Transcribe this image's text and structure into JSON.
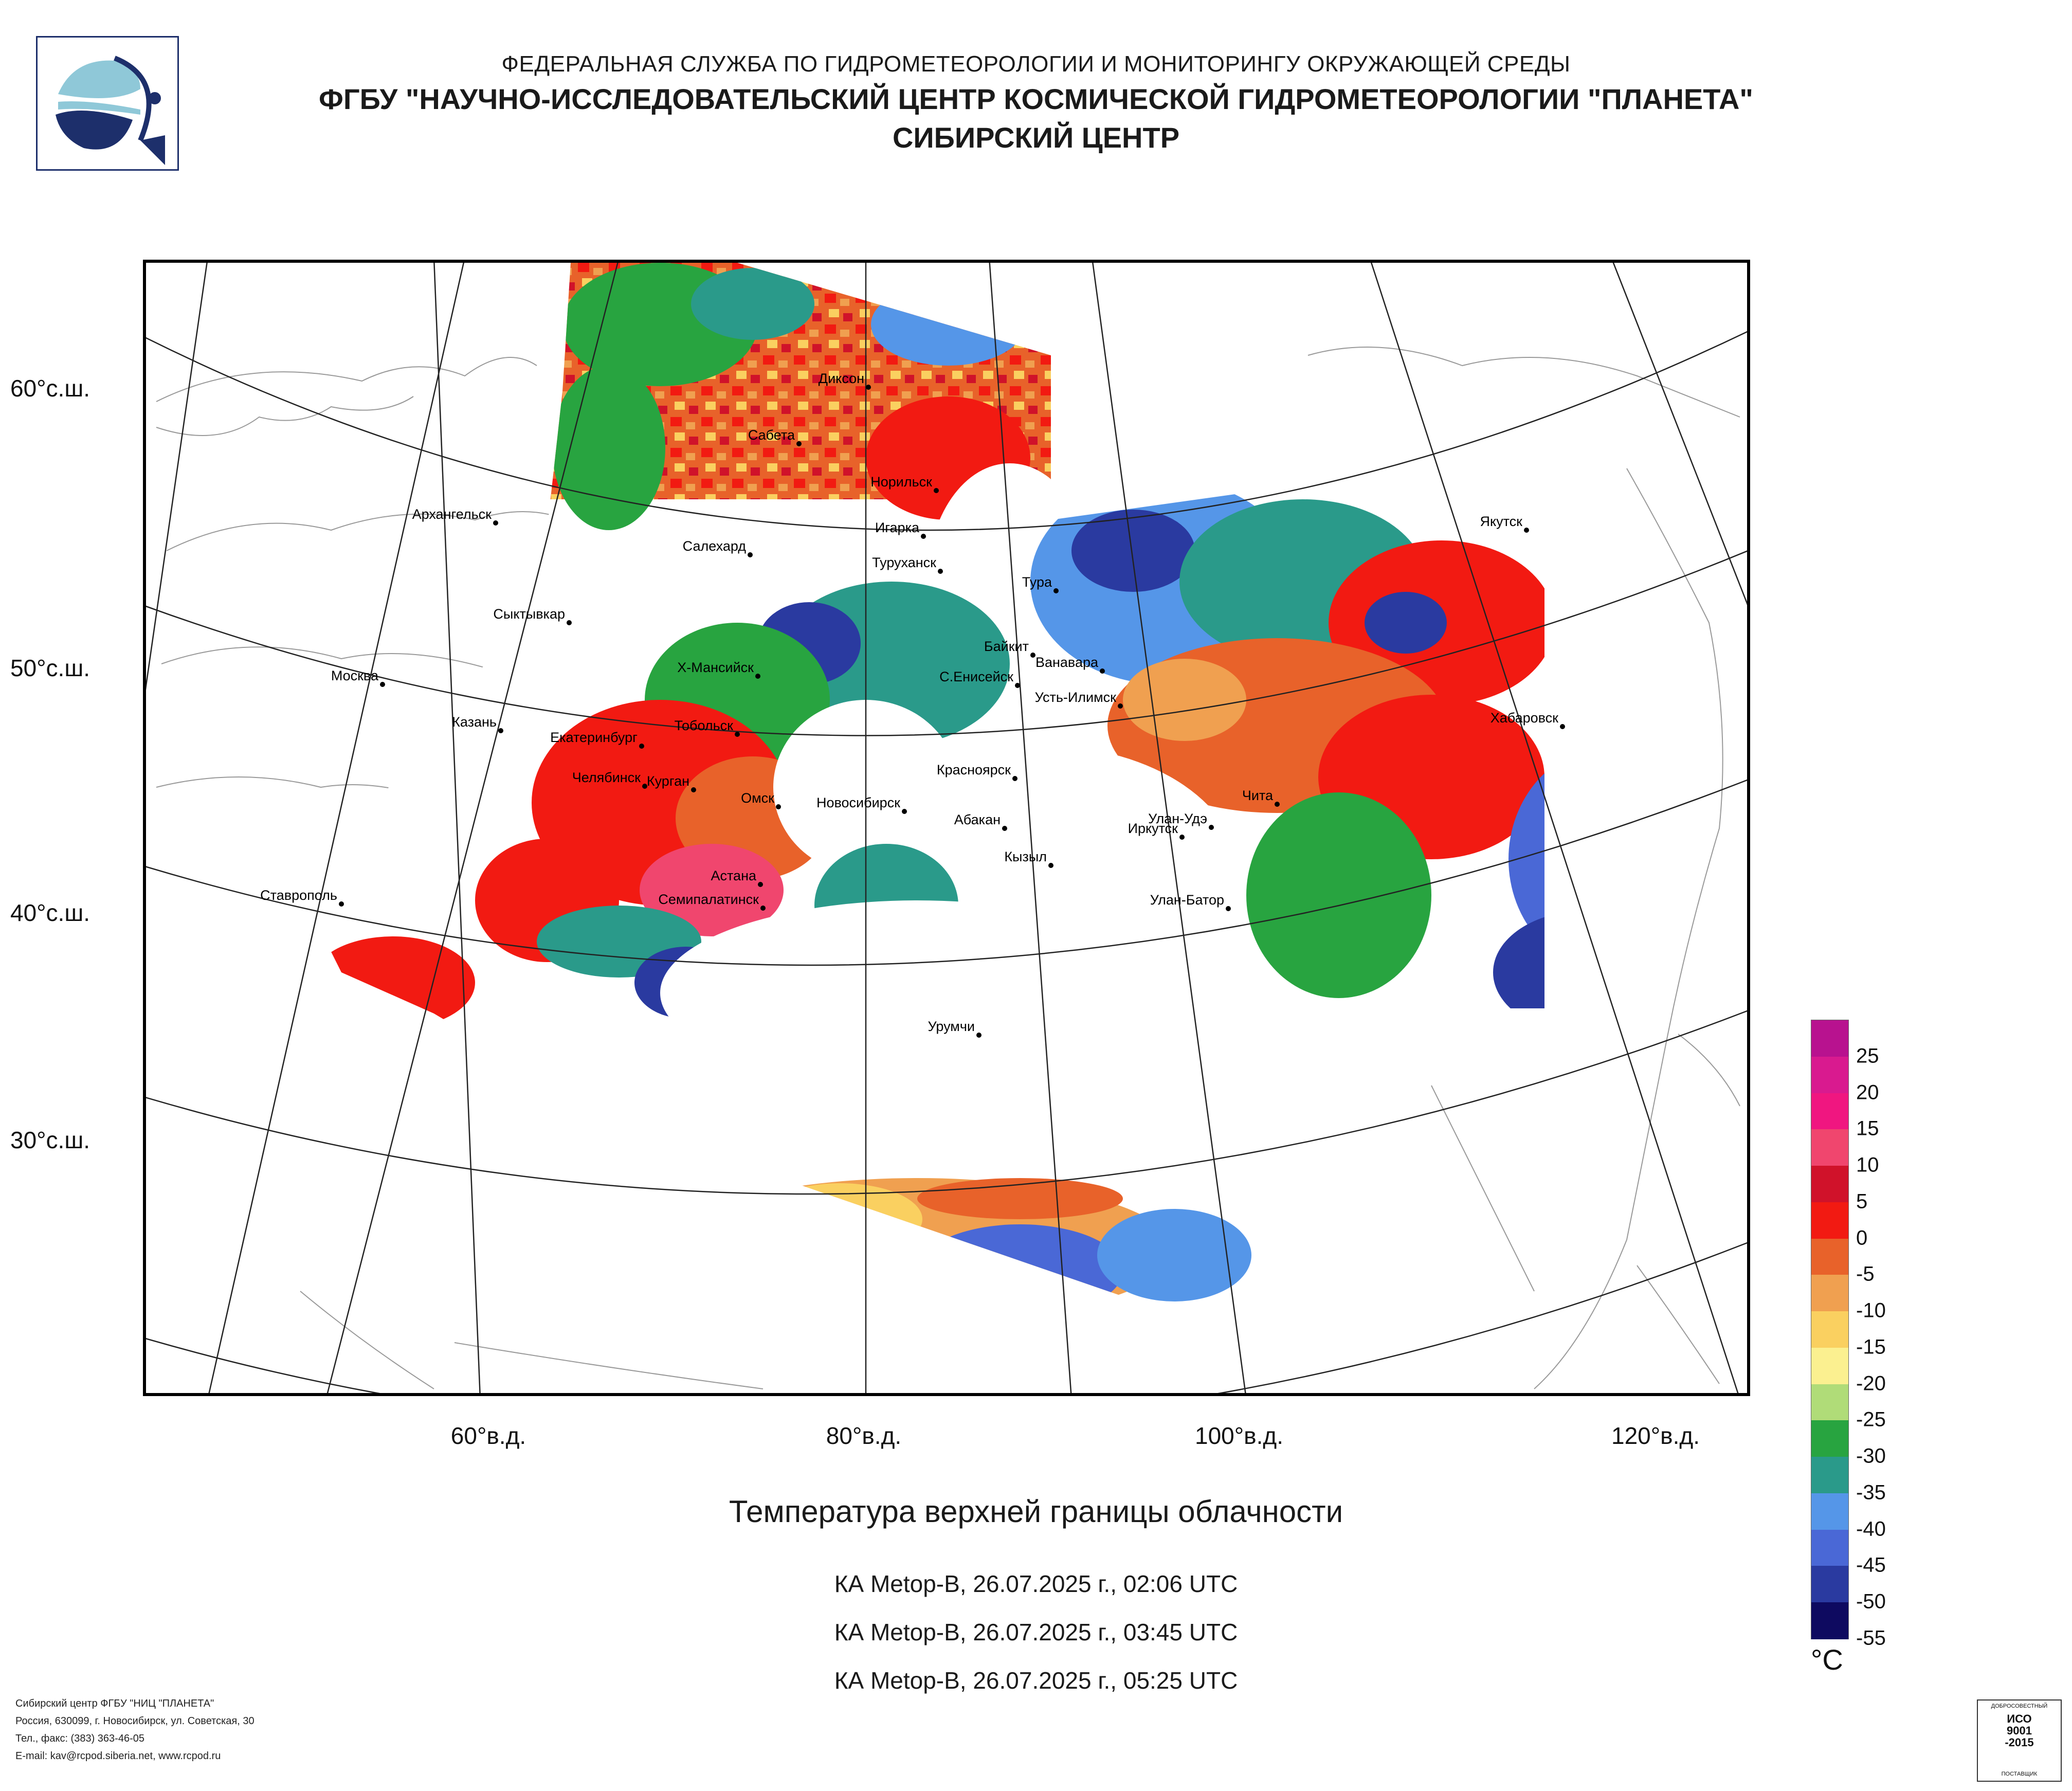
{
  "header": {
    "line1": "ФЕДЕРАЛЬНАЯ СЛУЖБА ПО ГИДРОМЕТЕОРОЛОГИИ И МОНИТОРИНГУ ОКРУЖАЮЩЕЙ СРЕДЫ",
    "line2": "ФГБУ \"НАУЧНО-ИССЛЕДОВАТЕЛЬСКИЙ ЦЕНТР КОСМИЧЕСКОЙ ГИДРОМЕТЕОРОЛОГИИ \"ПЛАНЕТА\"",
    "line3": "СИБИРСКИЙ ЦЕНТР"
  },
  "map": {
    "lat_labels": [
      "60°с.ш.",
      "50°с.ш.",
      "40°с.ш.",
      "30°с.ш."
    ],
    "lon_labels": [
      "60°в.д.",
      "80°в.д.",
      "100°в.д.",
      "120°в.д."
    ],
    "cities": [
      "Диксон",
      "Сабета",
      "Норильск",
      "Архангельск",
      "Салехард",
      "Игарка",
      "Туруханск",
      "Тура",
      "Якутск",
      "Сыктывкар",
      "Байкит",
      "Ванавара",
      "Москва",
      "Х-Мансийск",
      "С.Енисейск",
      "Усть-Илимск",
      "Хабаровск",
      "Казань",
      "Екатеринбург",
      "Тобольск",
      "Красноярск",
      "Челябинск",
      "Курган",
      "Омск",
      "Новосибирск",
      "Чита",
      "Абакан",
      "Улан-Удэ",
      "Иркутск",
      "Кызыл",
      "Астана",
      "Ставрополь",
      "Семипалатинск",
      "Улан-Батор",
      "Урумчи"
    ]
  },
  "caption": "Температура верхней границы облачности",
  "satellite_passes": [
    "КА Metop-B, 26.07.2025 г., 02:06 UTC",
    "КА Metop-B, 26.07.2025 г., 03:45 UTC",
    "КА Metop-B, 26.07.2025 г., 05:25 UTC"
  ],
  "legend": {
    "ticks": [
      "25",
      "20",
      "15",
      "10",
      "5",
      "0",
      "-5",
      "-10",
      "-15",
      "-20",
      "-25",
      "-30",
      "-35",
      "-40",
      "-45",
      "-50",
      "-55"
    ],
    "unit": "°C",
    "colors": [
      "#b8128f",
      "#d91a8f",
      "#f01680",
      "#f0466e",
      "#d0122a",
      "#f21a12",
      "#e8622a",
      "#f0a050",
      "#fad060",
      "#fbf090",
      "#b0dc78",
      "#28a440",
      "#2a9a8a",
      "#5596e8",
      "#4a68d6",
      "#2a3aa0",
      "#0e0a60"
    ]
  },
  "footer": {
    "lines": [
      "Сибирский центр ФГБУ \"НИЦ \"ПЛАНЕТА\"",
      "Россия, 630099, г. Новосибирск, ул. Советская, 30",
      "Тел., факс: (383) 363-46-05",
      "E-mail: kav@rcpod.siberia.net, www.rcpod.ru"
    ]
  },
  "iso_badge": {
    "top": "ДОБРОСОВЕСТНЫЙ",
    "main1": "ИСО",
    "main2": "9001",
    "main3": "-2015",
    "bottom": "ПОСТАВЩИК"
  }
}
